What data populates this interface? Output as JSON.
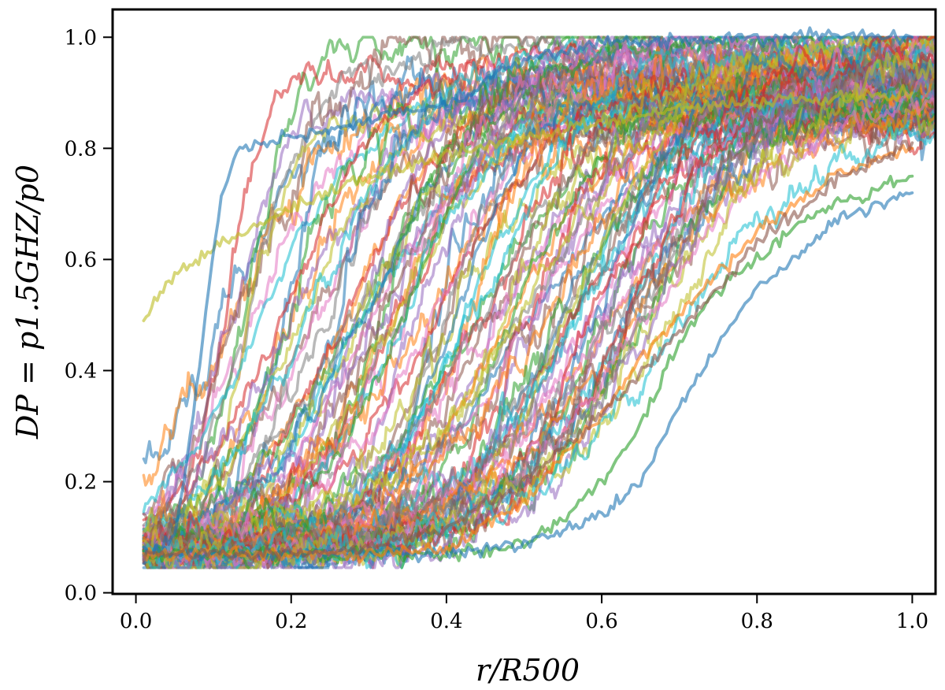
{
  "chart_data": {
    "type": "line",
    "title": "",
    "xlabel": "r/R500",
    "ylabel": "DP = p1.5GHZ/p0",
    "xlim": [
      -0.03,
      1.03
    ],
    "ylim": [
      -0.002,
      1.05
    ],
    "xticks": [
      0.0,
      0.2,
      0.4,
      0.6,
      0.8,
      1.0
    ],
    "xtick_labels": [
      "0.0",
      "0.2",
      "0.4",
      "0.6",
      "0.8",
      "1.0"
    ],
    "yticks": [
      0.0,
      0.2,
      0.4,
      0.6,
      0.8,
      1.0
    ],
    "ytick_labels": [
      "0.0",
      "0.2",
      "0.4",
      "0.6",
      "0.8",
      "1.0"
    ],
    "grid": false,
    "legend": "none",
    "palette": [
      "#1f77b4",
      "#ff7f0e",
      "#2ca02c",
      "#d62728",
      "#9467bd",
      "#8c564b",
      "#e377c2",
      "#7f7f7f",
      "#bcbd22",
      "#17becf"
    ],
    "series_count": 100,
    "series_shape": "logistic profile with noise: y = y0 + (ymax - y0) / (1 + exp(-(r - r_half) / width))",
    "x_range": [
      0.01,
      1.03
    ],
    "series": [
      {
        "values": [
          [
            0.01,
            0.49
          ],
          [
            0.02,
            0.52
          ],
          [
            0.05,
            0.57
          ],
          [
            0.1,
            0.62
          ],
          [
            0.2,
            0.69
          ],
          [
            0.3,
            0.75
          ],
          [
            0.4,
            0.79
          ],
          [
            0.5,
            0.82
          ],
          [
            0.6,
            0.85
          ],
          [
            0.7,
            0.87
          ],
          [
            0.8,
            0.88
          ],
          [
            0.9,
            0.89
          ],
          [
            1.0,
            0.9
          ]
        ]
      },
      {
        "values": [
          [
            0.01,
            0.07
          ],
          [
            0.05,
            0.1
          ],
          [
            0.07,
            0.28
          ],
          [
            0.09,
            0.5
          ],
          [
            0.11,
            0.72
          ],
          [
            0.13,
            0.8
          ],
          [
            0.2,
            0.82
          ],
          [
            0.3,
            0.85
          ],
          [
            0.4,
            0.88
          ],
          [
            0.5,
            0.96
          ],
          [
            0.6,
            0.99
          ],
          [
            0.8,
            1.0
          ],
          [
            1.0,
            1.0
          ]
        ]
      },
      {
        "values": [
          [
            0.01,
            0.07
          ],
          [
            0.1,
            0.07
          ],
          [
            0.2,
            0.07
          ],
          [
            0.3,
            0.07
          ],
          [
            0.4,
            0.07
          ],
          [
            0.5,
            0.09
          ],
          [
            0.55,
            0.13
          ],
          [
            0.6,
            0.2
          ],
          [
            0.65,
            0.3
          ],
          [
            0.7,
            0.45
          ],
          [
            0.75,
            0.55
          ],
          [
            0.8,
            0.6
          ],
          [
            0.85,
            0.66
          ],
          [
            0.9,
            0.7
          ],
          [
            1.0,
            0.75
          ]
        ]
      },
      {
        "values": [
          [
            0.01,
            0.07
          ],
          [
            0.1,
            0.07
          ],
          [
            0.2,
            0.07
          ],
          [
            0.3,
            0.07
          ],
          [
            0.4,
            0.07
          ],
          [
            0.5,
            0.09
          ],
          [
            0.55,
            0.11
          ],
          [
            0.6,
            0.14
          ],
          [
            0.65,
            0.2
          ],
          [
            0.7,
            0.33
          ],
          [
            0.75,
            0.45
          ],
          [
            0.8,
            0.55
          ],
          [
            0.85,
            0.6
          ],
          [
            0.9,
            0.67
          ],
          [
            1.0,
            0.72
          ]
        ]
      },
      {
        "values": [
          [
            0.01,
            0.07
          ],
          [
            0.1,
            0.07
          ],
          [
            0.2,
            0.07
          ],
          [
            0.3,
            0.07
          ],
          [
            0.4,
            0.08
          ],
          [
            0.45,
            0.12
          ],
          [
            0.5,
            0.16
          ],
          [
            0.55,
            0.25
          ],
          [
            0.6,
            0.32
          ],
          [
            0.65,
            0.42
          ],
          [
            0.7,
            0.5
          ],
          [
            0.8,
            0.65
          ],
          [
            0.9,
            0.75
          ],
          [
            1.0,
            0.8
          ]
        ]
      },
      {
        "values": [
          [
            0.01,
            0.07
          ],
          [
            0.1,
            0.07
          ],
          [
            0.2,
            0.07
          ],
          [
            0.3,
            0.08
          ],
          [
            0.4,
            0.12
          ],
          [
            0.5,
            0.2
          ],
          [
            0.6,
            0.32
          ],
          [
            0.7,
            0.47
          ],
          [
            0.8,
            0.63
          ],
          [
            0.9,
            0.74
          ],
          [
            1.0,
            0.81
          ]
        ]
      }
    ]
  }
}
